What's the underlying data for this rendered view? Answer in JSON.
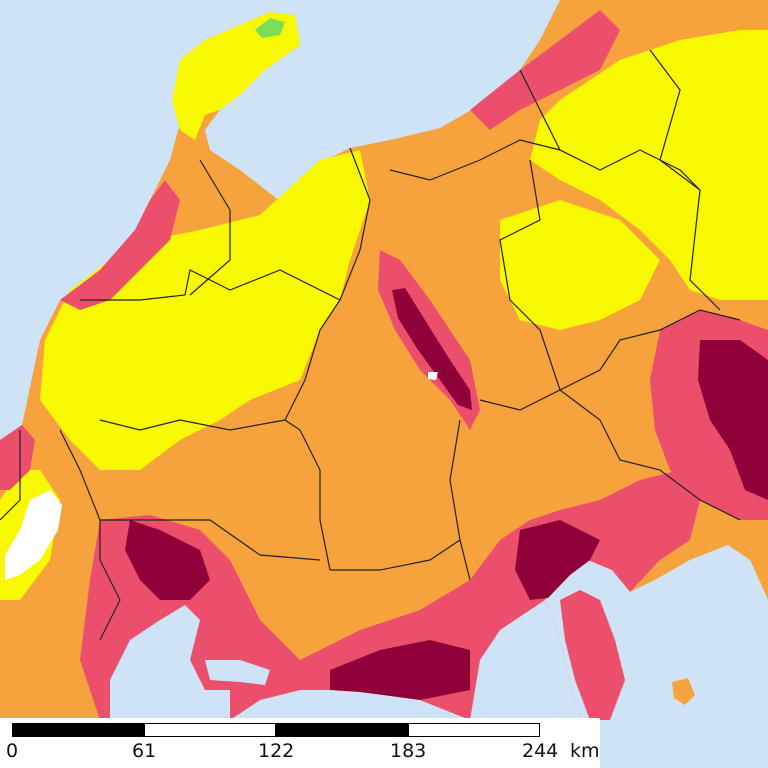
{
  "colors": {
    "sea": "#cfe3f7",
    "very_low": "#7ddc5a",
    "low": "#f8f800",
    "moderate": "#f7a33d",
    "high": "#ec4f6c",
    "very_high": "#8f0039",
    "water": "#ffffff",
    "boundary": "#222222"
  },
  "scale_bar": {
    "unit": "km",
    "ticks": [
      "0",
      "61",
      "122",
      "183",
      "244"
    ]
  }
}
